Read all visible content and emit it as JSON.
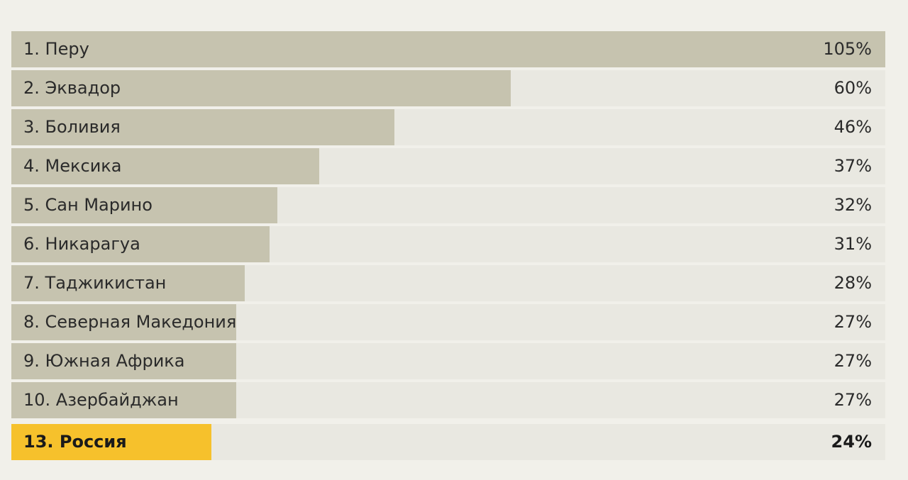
{
  "chart_data": {
    "type": "bar",
    "orientation": "horizontal",
    "value_unit": "%",
    "xlim": [
      0,
      105
    ],
    "colors": {
      "background": "#f1f0ea",
      "track": "#e9e8e1",
      "bar": "#c6c3af",
      "highlight_bar": "#f6c12c"
    },
    "categories": [
      "1. Перу",
      "2. Эквадор",
      "3. Боливия",
      "4. Мексика",
      "5. Сан Марино",
      "6. Никарагуа",
      "7. Таджикистан",
      "8. Северная Македония",
      "9. Южная Африка",
      "10. Азербайджан",
      "13. Россия"
    ],
    "values": [
      105,
      60,
      46,
      37,
      32,
      31,
      28,
      27,
      27,
      27,
      24
    ],
    "value_labels": [
      "105%",
      "60%",
      "46%",
      "37%",
      "32%",
      "31%",
      "28%",
      "27%",
      "27%",
      "27%",
      "24%"
    ],
    "highlight_index": 10
  }
}
